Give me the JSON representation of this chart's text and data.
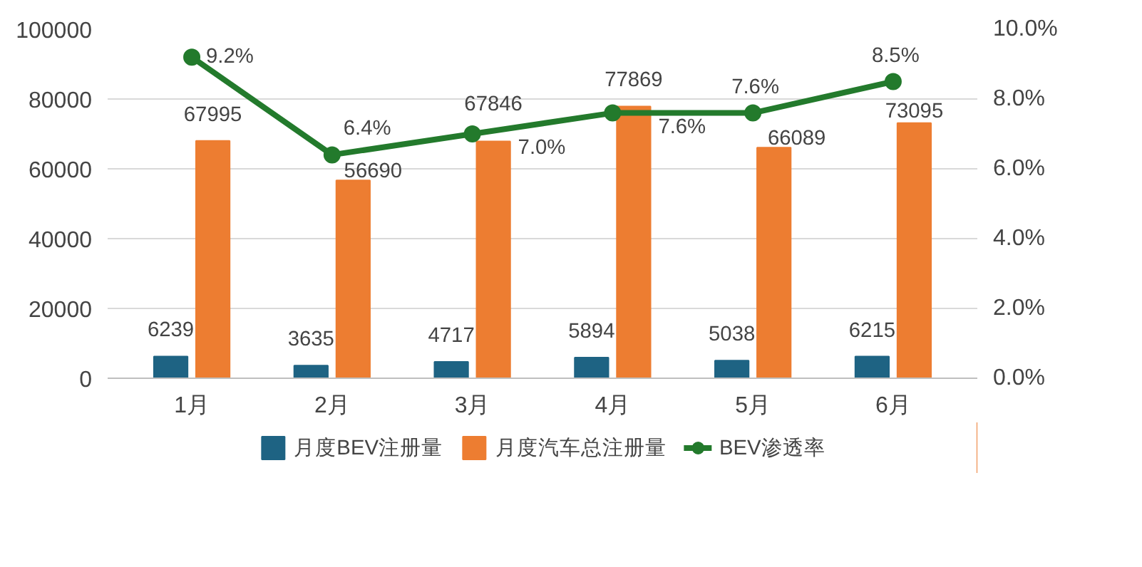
{
  "chart_data": {
    "type": "bar",
    "categories": [
      "1月",
      "2月",
      "3月",
      "4月",
      "5月",
      "6月"
    ],
    "series": [
      {
        "name": "月度BEV注册量",
        "color": "#1e6383",
        "values": [
          6239,
          3635,
          4717,
          5894,
          5038,
          6215
        ]
      },
      {
        "name": "月度汽车总注册量",
        "color": "#ed7d31",
        "values": [
          67995,
          56690,
          67846,
          77869,
          66089,
          73095
        ]
      },
      {
        "name": "BEV渗透率",
        "type": "line",
        "axis": "y2",
        "color": "#237a2c",
        "values": [
          9.2,
          6.4,
          7.0,
          7.6,
          7.6,
          8.5
        ],
        "value_labels": [
          "9.2%",
          "6.4%",
          "7.0%",
          "7.6%",
          "7.6%",
          "8.5%"
        ]
      }
    ],
    "ylim": [
      0,
      100000
    ],
    "yticks": [
      0,
      20000,
      40000,
      60000,
      80000,
      100000
    ],
    "y2lim": [
      0,
      10
    ],
    "y2ticks": [
      {
        "value": 0,
        "label": "0.0%"
      },
      {
        "value": 2,
        "label": "2.0%"
      },
      {
        "value": 4,
        "label": "4.0%"
      },
      {
        "value": 6,
        "label": "6.0%"
      },
      {
        "value": 8,
        "label": "8.0%"
      },
      {
        "value": 10,
        "label": "10.0%"
      }
    ],
    "data_labels": true,
    "grid": "y",
    "legend": "bottom",
    "marker": "circle",
    "line_style": "solid"
  }
}
